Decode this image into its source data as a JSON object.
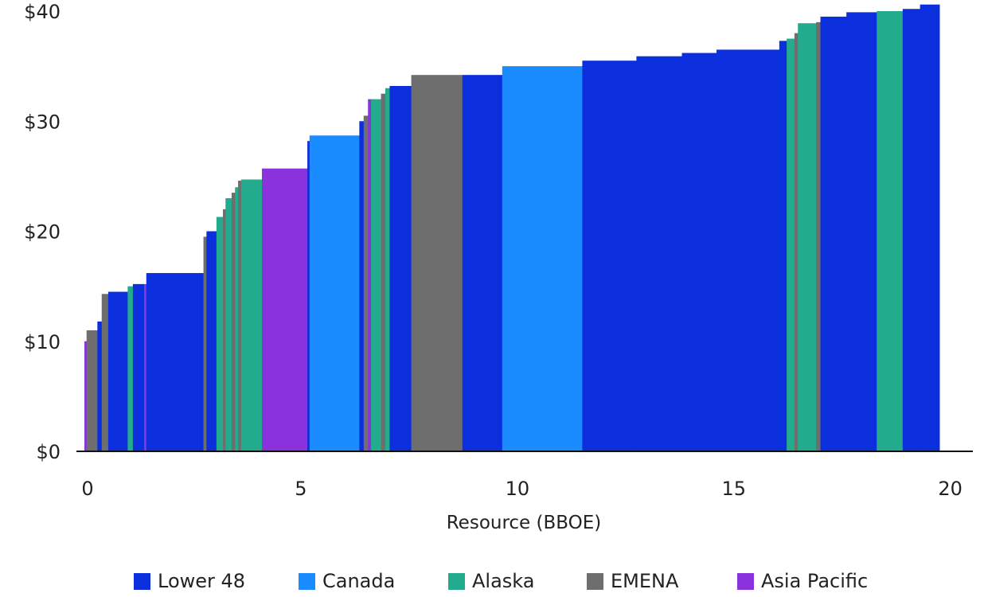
{
  "colors": {
    "Lower 48": "#0b2fdc",
    "Canada": "#1a8cff",
    "Alaska": "#22ab8c",
    "EMENA": "#6e6e6e",
    "Asia Pacific": "#8a33dc"
  },
  "chart_data": {
    "type": "bar",
    "subtype": "supply-cost-curve",
    "xlabel": "Resource (BBOE)",
    "ylabel": "",
    "xlim": [
      0,
      20.3
    ],
    "ylim": [
      0,
      40
    ],
    "xticks": [
      {
        "value": 0,
        "label": "0"
      },
      {
        "value": 5,
        "label": "5"
      },
      {
        "value": 10,
        "label": "10"
      },
      {
        "value": 15,
        "label": "15"
      },
      {
        "value": 20,
        "label": "20"
      }
    ],
    "yticks": [
      {
        "value": 0,
        "label": "$0"
      },
      {
        "value": 10,
        "label": "$10"
      },
      {
        "value": 20,
        "label": "$20"
      },
      {
        "value": 30,
        "label": "$30"
      },
      {
        "value": 40,
        "label": "$40"
      }
    ],
    "grid": false,
    "legend_position": "bottom",
    "series": [
      {
        "name": "Lower 48"
      },
      {
        "name": "Canada"
      },
      {
        "name": "Alaska"
      },
      {
        "name": "EMENA"
      },
      {
        "name": "Asia Pacific"
      }
    ],
    "segments": [
      {
        "region": "Asia Pacific",
        "x0": 0.0,
        "x1": 0.05,
        "y": 10.0
      },
      {
        "region": "EMENA",
        "x0": 0.05,
        "x1": 0.3,
        "y": 11.0
      },
      {
        "region": "Lower 48",
        "x0": 0.3,
        "x1": 0.4,
        "y": 11.8
      },
      {
        "region": "EMENA",
        "x0": 0.4,
        "x1": 0.55,
        "y": 14.3
      },
      {
        "region": "Lower 48",
        "x0": 0.55,
        "x1": 1.0,
        "y": 14.5
      },
      {
        "region": "Alaska",
        "x0": 1.0,
        "x1": 1.12,
        "y": 15.0
      },
      {
        "region": "Lower 48",
        "x0": 1.12,
        "x1": 1.38,
        "y": 15.2
      },
      {
        "region": "Asia Pacific",
        "x0": 1.38,
        "x1": 1.43,
        "y": 15.2
      },
      {
        "region": "Lower 48",
        "x0": 1.43,
        "x1": 2.75,
        "y": 16.2
      },
      {
        "region": "EMENA",
        "x0": 2.75,
        "x1": 2.82,
        "y": 19.5
      },
      {
        "region": "Lower 48",
        "x0": 2.82,
        "x1": 3.05,
        "y": 20.0
      },
      {
        "region": "Alaska",
        "x0": 3.05,
        "x1": 3.2,
        "y": 21.3
      },
      {
        "region": "EMENA",
        "x0": 3.2,
        "x1": 3.26,
        "y": 22.0
      },
      {
        "region": "Alaska",
        "x0": 3.26,
        "x1": 3.4,
        "y": 23.0
      },
      {
        "region": "EMENA",
        "x0": 3.4,
        "x1": 3.48,
        "y": 23.5
      },
      {
        "region": "Alaska",
        "x0": 3.48,
        "x1": 3.55,
        "y": 24.0
      },
      {
        "region": "EMENA",
        "x0": 3.55,
        "x1": 3.62,
        "y": 24.6
      },
      {
        "region": "Alaska",
        "x0": 3.62,
        "x1": 4.1,
        "y": 24.7
      },
      {
        "region": "Asia Pacific",
        "x0": 4.1,
        "x1": 5.15,
        "y": 25.7
      },
      {
        "region": "Lower 48",
        "x0": 5.15,
        "x1": 5.2,
        "y": 28.2
      },
      {
        "region": "Canada",
        "x0": 5.2,
        "x1": 6.35,
        "y": 28.7
      },
      {
        "region": "Lower 48",
        "x0": 6.35,
        "x1": 6.45,
        "y": 30.0
      },
      {
        "region": "EMENA",
        "x0": 6.45,
        "x1": 6.55,
        "y": 30.5
      },
      {
        "region": "Asia Pacific",
        "x0": 6.55,
        "x1": 6.62,
        "y": 32.0
      },
      {
        "region": "Alaska",
        "x0": 6.62,
        "x1": 6.85,
        "y": 32.0
      },
      {
        "region": "EMENA",
        "x0": 6.85,
        "x1": 6.95,
        "y": 32.5
      },
      {
        "region": "Alaska",
        "x0": 6.95,
        "x1": 7.05,
        "y": 33.0
      },
      {
        "region": "Lower 48",
        "x0": 7.05,
        "x1": 7.55,
        "y": 33.2
      },
      {
        "region": "EMENA",
        "x0": 7.55,
        "x1": 8.73,
        "y": 34.2
      },
      {
        "region": "Lower 48",
        "x0": 8.73,
        "x1": 9.65,
        "y": 34.2
      },
      {
        "region": "Canada",
        "x0": 9.65,
        "x1": 11.5,
        "y": 35.0
      },
      {
        "region": "Lower 48",
        "x0": 11.5,
        "x1": 12.75,
        "y": 35.5
      },
      {
        "region": "Lower 48",
        "x0": 12.75,
        "x1": 13.8,
        "y": 35.9
      },
      {
        "region": "Lower 48",
        "x0": 13.8,
        "x1": 14.6,
        "y": 36.2
      },
      {
        "region": "Lower 48",
        "x0": 14.6,
        "x1": 16.05,
        "y": 36.5
      },
      {
        "region": "Lower 48",
        "x0": 16.05,
        "x1": 16.22,
        "y": 37.3
      },
      {
        "region": "Alaska",
        "x0": 16.22,
        "x1": 16.4,
        "y": 37.5
      },
      {
        "region": "EMENA",
        "x0": 16.4,
        "x1": 16.48,
        "y": 38.0
      },
      {
        "region": "Alaska",
        "x0": 16.48,
        "x1": 16.9,
        "y": 38.9
      },
      {
        "region": "EMENA",
        "x0": 16.9,
        "x1": 17.0,
        "y": 39.0
      },
      {
        "region": "Lower 48",
        "x0": 17.0,
        "x1": 17.6,
        "y": 39.5
      },
      {
        "region": "Lower 48",
        "x0": 17.6,
        "x1": 18.3,
        "y": 39.9
      },
      {
        "region": "Alaska",
        "x0": 18.3,
        "x1": 18.9,
        "y": 40.0
      },
      {
        "region": "Lower 48",
        "x0": 18.9,
        "x1": 19.3,
        "y": 40.2
      },
      {
        "region": "Lower 48",
        "x0": 19.3,
        "x1": 19.75,
        "y": 40.6
      }
    ]
  }
}
